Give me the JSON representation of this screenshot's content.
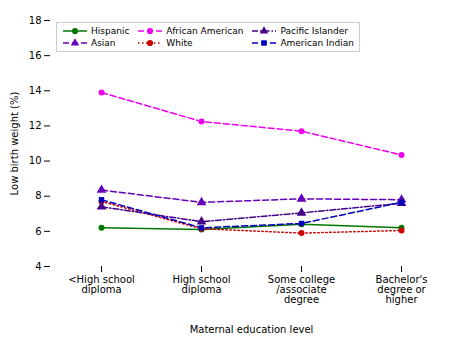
{
  "chart_data": {
    "type": "line",
    "categories": [
      "<High school\ndiploma",
      "High school\ndiploma",
      "Some college\n/associate\ndegree",
      "Bachelor's\ndegree or\nhigher"
    ],
    "series": [
      {
        "name": "Hispanic",
        "color": "#007700",
        "values": [
          6.2,
          6.1,
          6.4,
          6.2
        ],
        "marker": "circle",
        "line_style": "solid"
      },
      {
        "name": "Asian",
        "color": "#6600bb",
        "values": [
          8.35,
          7.65,
          7.85,
          7.8
        ],
        "marker": "triangle",
        "line_style": "dashed"
      },
      {
        "name": "African American",
        "color": "#ee00ee",
        "values": [
          13.9,
          12.25,
          11.7,
          10.35
        ],
        "marker": "circle",
        "line_style": "dashed"
      },
      {
        "name": "White",
        "color": "#cc0000",
        "values": [
          7.7,
          6.15,
          5.9,
          6.05
        ],
        "marker": "circle",
        "line_style": "dotted"
      },
      {
        "name": "Pacific Islander",
        "color": "#440088",
        "values": [
          7.4,
          6.55,
          7.05,
          7.6
        ],
        "marker": "triangle",
        "line_style": "dashdot"
      },
      {
        "name": "American Indian",
        "color": "#0000bb",
        "values": [
          7.8,
          6.2,
          6.45,
          7.65
        ],
        "marker": "square",
        "line_style": "dashed"
      }
    ],
    "xlabel": "Maternal education level",
    "ylabel": "Low birth weight (%)",
    "ylim": [
      4,
      18
    ],
    "yticks": [
      4,
      6,
      8,
      10,
      12,
      14,
      16,
      18
    ],
    "grid": false,
    "legend": "upper left"
  }
}
